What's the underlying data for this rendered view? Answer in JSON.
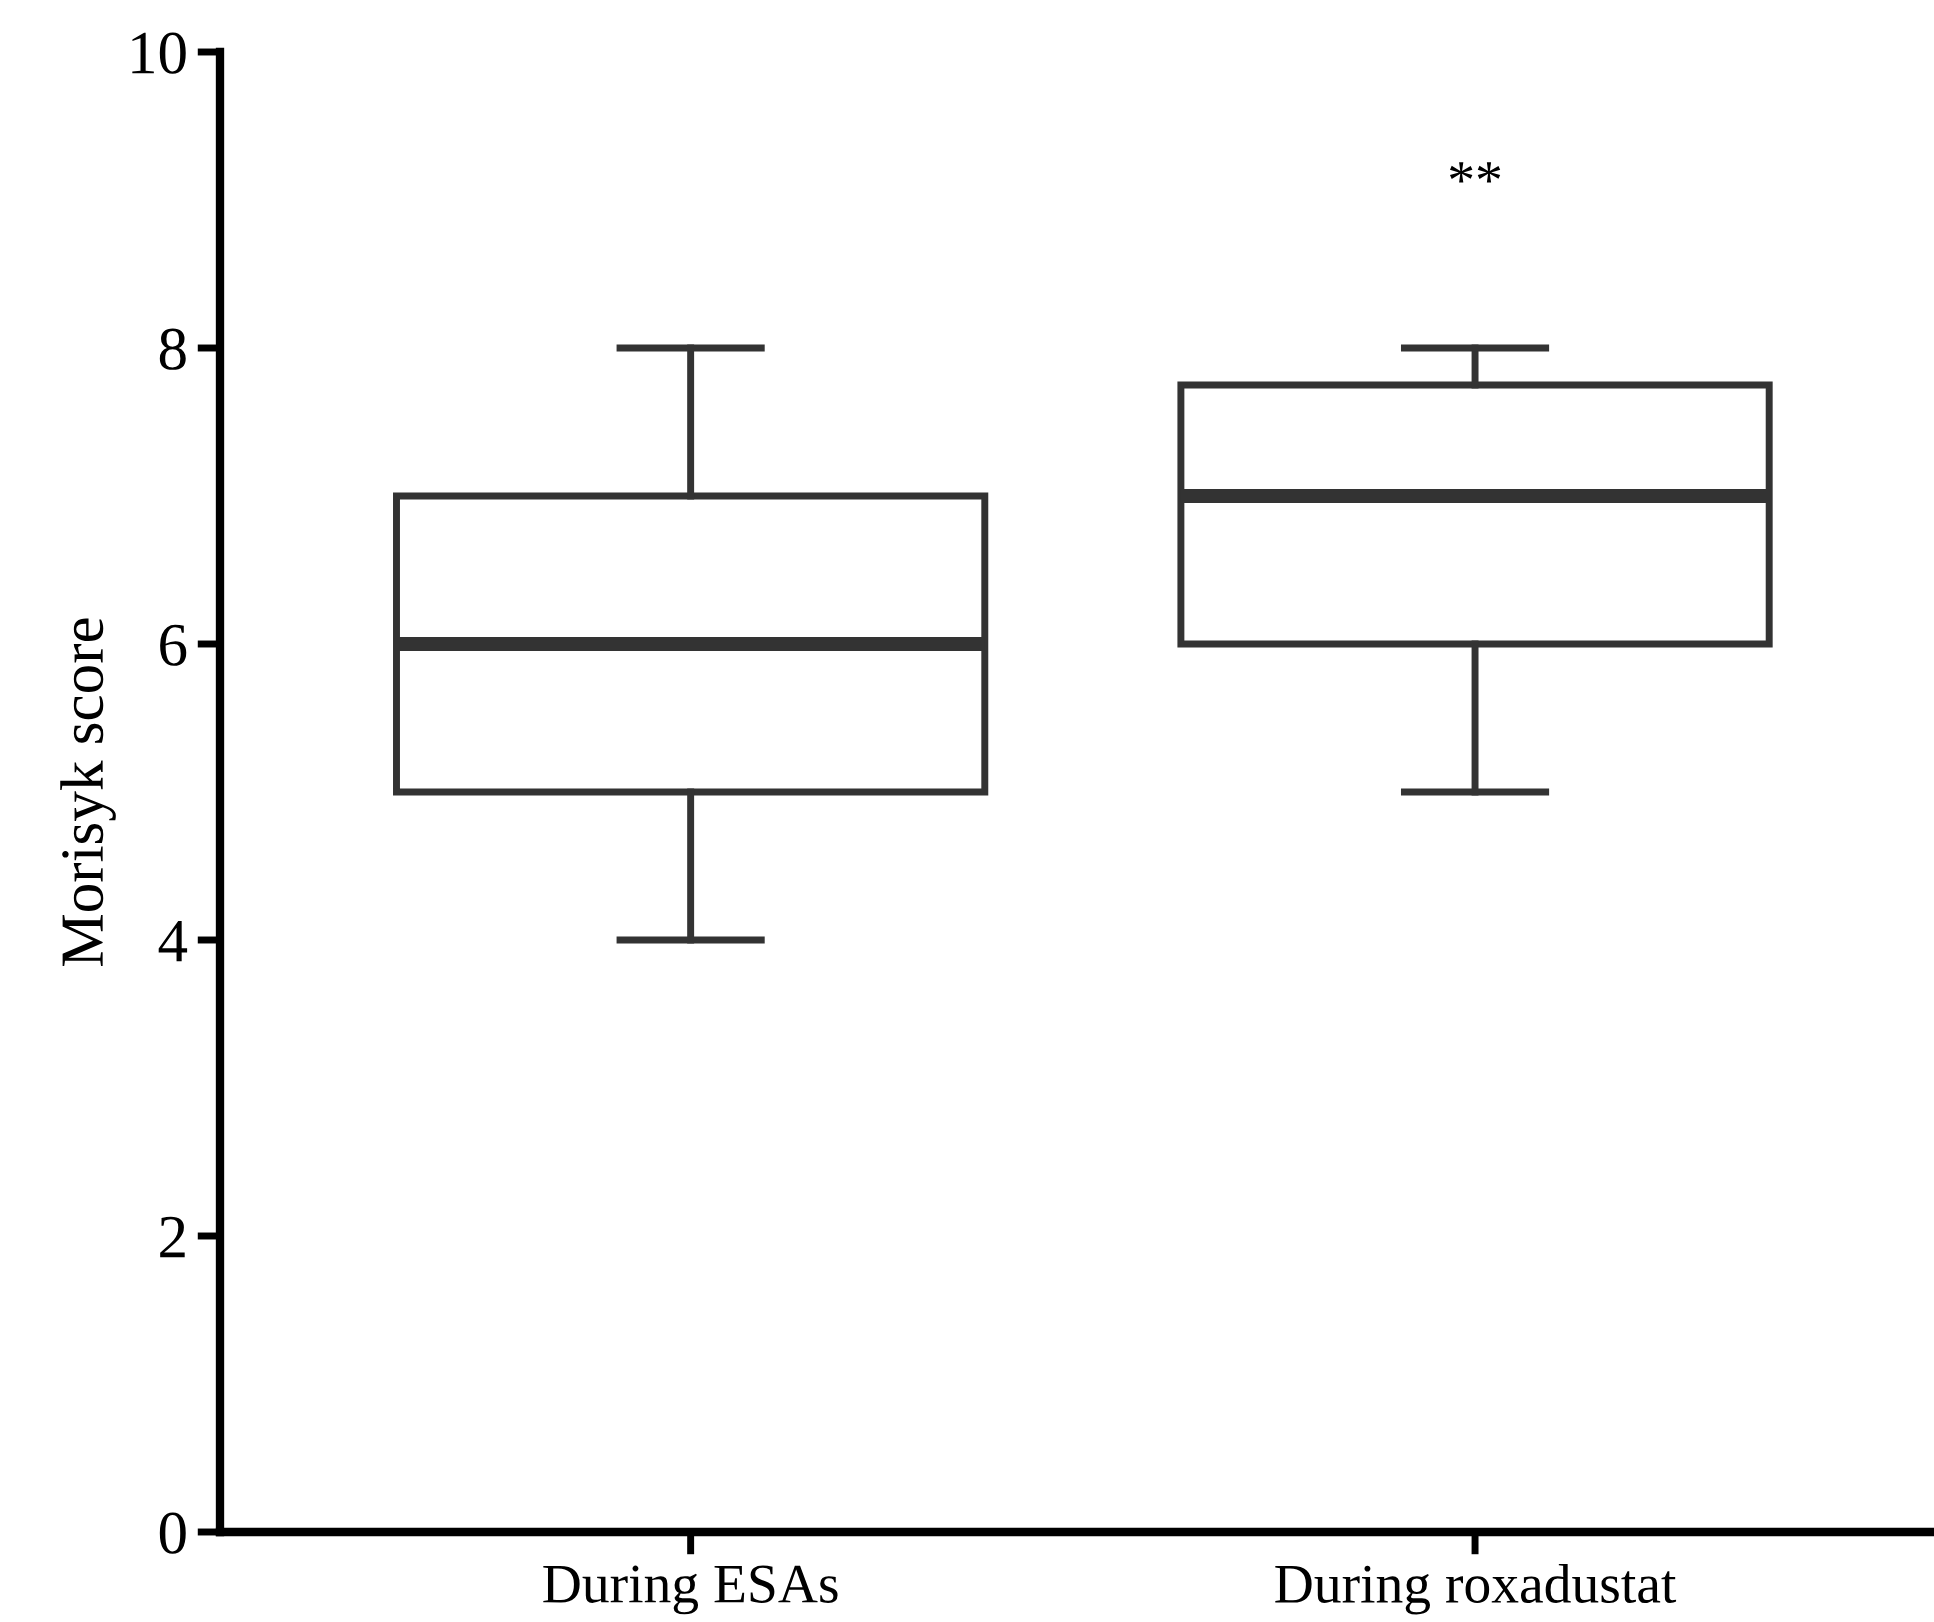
{
  "chart_data": {
    "type": "box",
    "ylabel": "Morisyk score",
    "categories": [
      "During ESAs",
      "During roxadustat"
    ],
    "boxes": [
      {
        "low": 4,
        "q1": 5,
        "median": 6,
        "q3": 7,
        "high": 8
      },
      {
        "low": 5,
        "q1": 6,
        "median": 7,
        "q3": 7.75,
        "high": 8
      }
    ],
    "ylim": [
      0,
      10
    ],
    "yticks": [
      0,
      2,
      4,
      6,
      8,
      10
    ],
    "grid": false,
    "legend": false,
    "annotations": [
      "**"
    ]
  }
}
